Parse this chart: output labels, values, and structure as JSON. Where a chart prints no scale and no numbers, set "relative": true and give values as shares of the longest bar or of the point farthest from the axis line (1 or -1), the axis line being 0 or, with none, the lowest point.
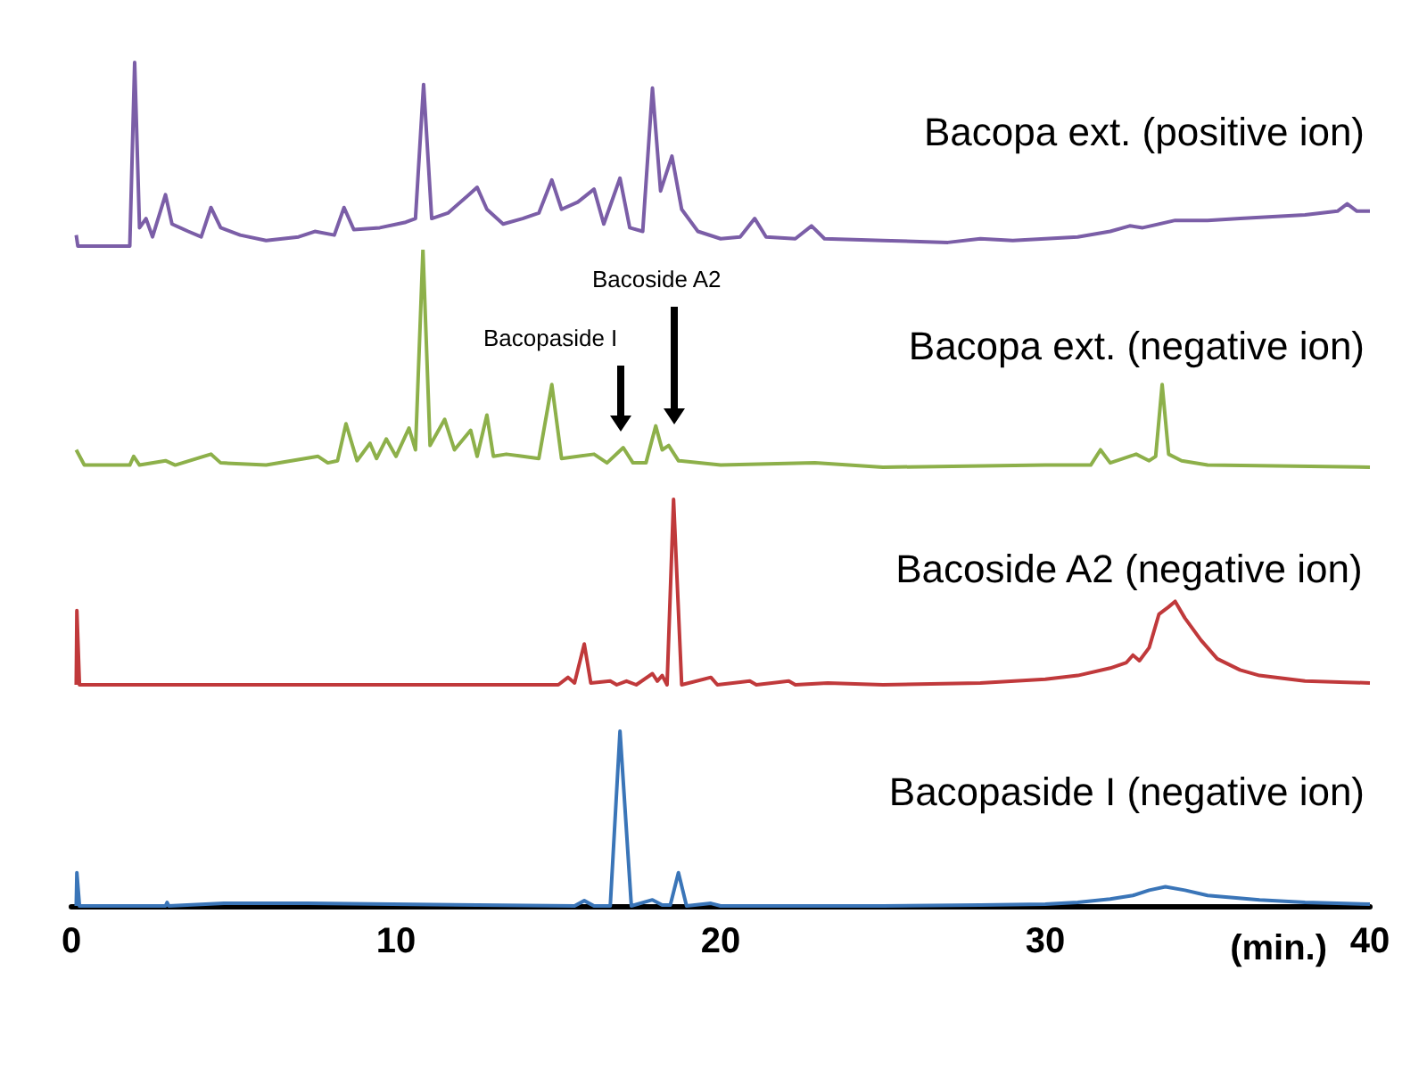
{
  "chart_data": [
    {
      "type": "line",
      "title": "Bacopa ext. (positive ion)",
      "relative": true,
      "xlim": [
        0,
        40
      ],
      "tick_labels": false,
      "color": "#7b5ea7",
      "x": [
        0.15,
        0.2,
        1.8,
        1.95,
        2.1,
        2.3,
        2.5,
        2.9,
        3.1,
        3.6,
        4.0,
        4.3,
        4.6,
        5.2,
        6,
        7,
        7.5,
        8.1,
        8.4,
        8.7,
        9.5,
        10.3,
        10.6,
        10.85,
        11.1,
        11.6,
        12.25,
        12.5,
        12.8,
        13.3,
        13.9,
        14.4,
        14.8,
        15.1,
        15.6,
        16.1,
        16.4,
        16.9,
        17.2,
        17.6,
        17.9,
        18.15,
        18.5,
        18.8,
        19.3,
        20,
        20.6,
        21.05,
        21.4,
        22.3,
        22.8,
        23.2,
        25,
        27,
        28,
        29,
        30,
        31,
        32,
        32.6,
        33,
        34,
        35,
        36,
        37,
        38,
        39,
        39.3,
        39.6,
        40
      ],
      "values": [
        0.06,
        0,
        0,
        1.0,
        0.1,
        0.15,
        0.05,
        0.28,
        0.12,
        0.08,
        0.05,
        0.21,
        0.1,
        0.06,
        0.03,
        0.05,
        0.08,
        0.06,
        0.21,
        0.09,
        0.1,
        0.13,
        0.15,
        0.88,
        0.15,
        0.18,
        0.28,
        0.32,
        0.2,
        0.12,
        0.15,
        0.18,
        0.36,
        0.2,
        0.24,
        0.31,
        0.12,
        0.37,
        0.1,
        0.08,
        0.86,
        0.3,
        0.49,
        0.2,
        0.08,
        0.04,
        0.05,
        0.15,
        0.05,
        0.04,
        0.11,
        0.04,
        0.03,
        0.02,
        0.04,
        0.03,
        0.04,
        0.05,
        0.08,
        0.11,
        0.1,
        0.14,
        0.14,
        0.15,
        0.16,
        0.17,
        0.19,
        0.23,
        0.19,
        0.19
      ]
    },
    {
      "type": "line",
      "title": "Bacopa ext. (negative ion)",
      "relative": true,
      "xlim": [
        0,
        40
      ],
      "tick_labels": false,
      "color": "#8db04a",
      "annotations": [
        "Bacopaside I",
        "Bacoside A2"
      ],
      "x": [
        0.15,
        0.4,
        1.8,
        1.92,
        2.1,
        2.9,
        3.2,
        4.3,
        4.6,
        6,
        7.6,
        7.9,
        8.2,
        8.46,
        8.8,
        9.2,
        9.4,
        9.7,
        10.0,
        10.4,
        10.6,
        10.83,
        11.05,
        11.5,
        11.8,
        12.3,
        12.5,
        12.8,
        13.0,
        13.4,
        13.9,
        14.4,
        14.8,
        15.1,
        16.1,
        16.5,
        17.0,
        17.3,
        17.7,
        18.0,
        18.2,
        18.4,
        18.7,
        20,
        22.9,
        25,
        30,
        31.4,
        31.7,
        32.0,
        32.8,
        33.2,
        33.4,
        33.6,
        33.8,
        34.2,
        35,
        40
      ],
      "values": [
        0.08,
        0.01,
        0.01,
        0.05,
        0.01,
        0.03,
        0.01,
        0.06,
        0.02,
        0.01,
        0.05,
        0.02,
        0.03,
        0.2,
        0.03,
        0.11,
        0.04,
        0.13,
        0.05,
        0.18,
        0.08,
        1.0,
        0.1,
        0.22,
        0.08,
        0.17,
        0.05,
        0.24,
        0.05,
        0.06,
        0.05,
        0.04,
        0.38,
        0.04,
        0.06,
        0.02,
        0.09,
        0.02,
        0.02,
        0.19,
        0.08,
        0.1,
        0.03,
        0.01,
        0.02,
        0,
        0.01,
        0.01,
        0.08,
        0.02,
        0.06,
        0.03,
        0.05,
        0.38,
        0.06,
        0.03,
        0.01,
        0
      ]
    },
    {
      "type": "line",
      "title": "Bacoside A2 (negative ion)",
      "relative": true,
      "xlim": [
        0,
        40
      ],
      "tick_labels": false,
      "color": "#c0393b",
      "x": [
        0.15,
        0.17,
        0.25,
        15.0,
        15.3,
        15.5,
        15.8,
        16.0,
        16.6,
        16.8,
        17.1,
        17.4,
        17.9,
        18.05,
        18.2,
        18.35,
        18.55,
        18.8,
        19.7,
        19.9,
        20.9,
        21.1,
        22.1,
        22.3,
        23.3,
        25,
        28,
        30,
        31,
        32,
        32.5,
        32.7,
        32.9,
        33.2,
        33.5,
        33.8,
        34.0,
        34.3,
        34.8,
        35.3,
        36,
        36.6,
        38,
        40
      ],
      "values": [
        0,
        0.4,
        0,
        0,
        0.04,
        0.01,
        0.22,
        0.01,
        0.02,
        0,
        0.02,
        0,
        0.06,
        0.02,
        0.05,
        0,
        1.0,
        0,
        0.04,
        0,
        0.02,
        0,
        0.02,
        0,
        0.01,
        0,
        0.01,
        0.03,
        0.05,
        0.09,
        0.12,
        0.16,
        0.13,
        0.2,
        0.38,
        0.42,
        0.45,
        0.36,
        0.24,
        0.14,
        0.08,
        0.05,
        0.02,
        0.01
      ]
    },
    {
      "type": "line",
      "title": "Bacopaside I (negative ion)",
      "relative": true,
      "xlim": [
        0,
        40
      ],
      "xticks": [
        0,
        10,
        20,
        30,
        40
      ],
      "xlabel": "(min.)",
      "tick_labels": "x",
      "color": "#3a75b8",
      "x": [
        0.15,
        0.17,
        0.25,
        2.9,
        2.95,
        3.0,
        4.7,
        5.0,
        7.3,
        15.5,
        15.8,
        16.1,
        16.6,
        16.9,
        17.25,
        17.9,
        18.2,
        18.45,
        18.7,
        18.95,
        19.7,
        20,
        25,
        28,
        30,
        31,
        32,
        32.7,
        33.2,
        33.7,
        34.3,
        35,
        36.6,
        38,
        40
      ],
      "values": [
        0,
        0.19,
        0,
        0,
        0.02,
        0,
        0.015,
        0.015,
        0.015,
        0,
        0.03,
        0,
        0,
        1.0,
        0,
        0.035,
        0.005,
        0.005,
        0.19,
        0,
        0.015,
        0,
        0,
        0.005,
        0.01,
        0.02,
        0.04,
        0.06,
        0.09,
        0.11,
        0.09,
        0.06,
        0.035,
        0.02,
        0.01
      ]
    }
  ]
}
